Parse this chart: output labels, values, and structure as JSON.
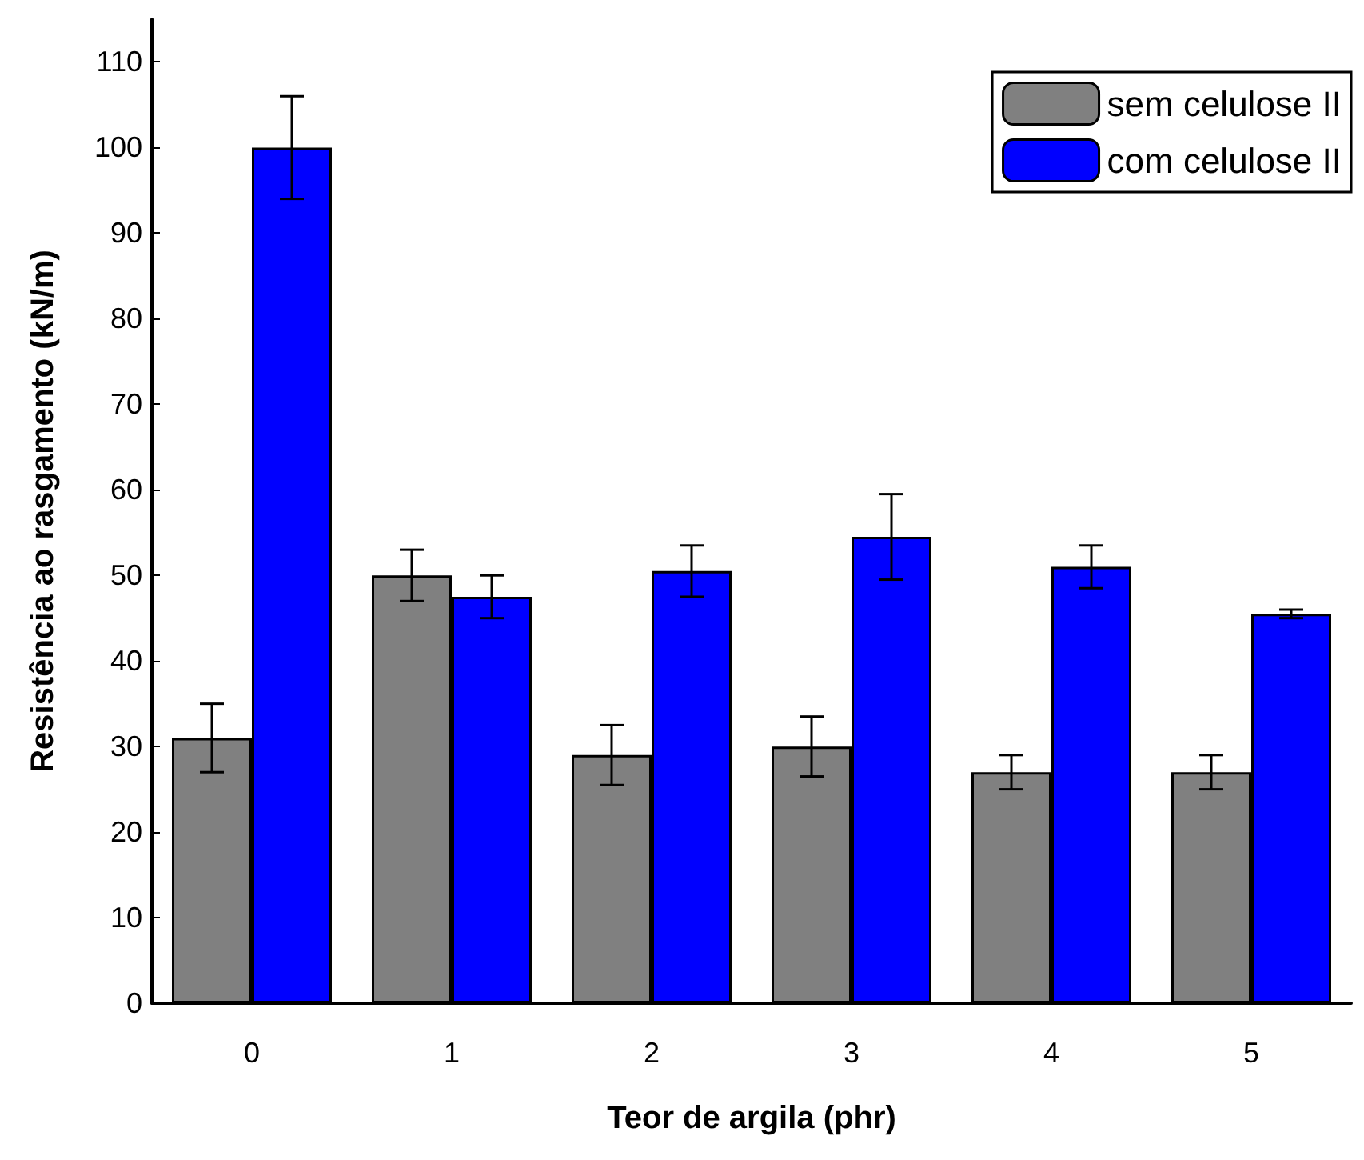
{
  "chart_data": {
    "type": "bar",
    "xlabel": "Teor de argila (phr)",
    "ylabel": "Resistência ao rasgamento (kN/m)",
    "categories": [
      "0",
      "1",
      "2",
      "3",
      "4",
      "5"
    ],
    "series": [
      {
        "name": "sem celulose II",
        "color": "#808080",
        "values": [
          31,
          50,
          29,
          30,
          27,
          27
        ],
        "errors": [
          4,
          3,
          3.5,
          3.5,
          2,
          2
        ]
      },
      {
        "name": "com celulose II",
        "color": "#0000ff",
        "values": [
          100,
          47.5,
          50.5,
          54.5,
          51,
          45.5
        ],
        "errors": [
          6,
          2.5,
          3,
          5,
          2.5,
          0.5
        ]
      }
    ],
    "ylim": [
      0,
      115
    ],
    "yticks": [
      0,
      10,
      20,
      30,
      40,
      50,
      60,
      70,
      80,
      90,
      100,
      110
    ],
    "grid": false,
    "legend": "top right"
  }
}
